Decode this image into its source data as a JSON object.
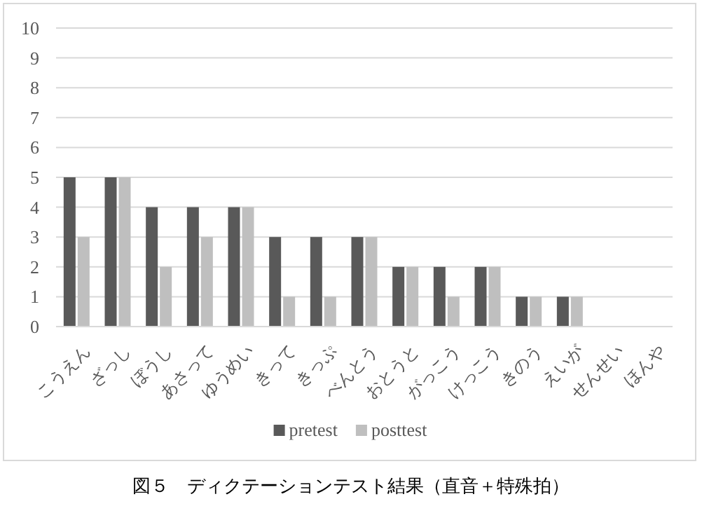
{
  "chart_data": {
    "type": "bar",
    "annotations": [
      "図５　ディクテーションテスト結果（直音＋特殊拍）"
    ],
    "categories": [
      "こうえん",
      "ざっし",
      "ぼうし",
      "あさって",
      "ゆうめい",
      "きって",
      "きっぷ",
      "べんとう",
      "おとうと",
      "がっこう",
      "けっこう",
      "きのう",
      "えいが",
      "せんせい",
      "ほんや"
    ],
    "series": [
      {
        "name": "pretest",
        "color": "#595959",
        "values": [
          5,
          5,
          4,
          4,
          4,
          3,
          3,
          3,
          2,
          2,
          2,
          1,
          1,
          0,
          0
        ]
      },
      {
        "name": "posttest",
        "color": "#bfbfbf",
        "values": [
          3,
          5,
          2,
          3,
          4,
          1,
          1,
          3,
          2,
          1,
          2,
          1,
          1,
          0,
          0
        ]
      }
    ],
    "ylim": [
      0,
      10
    ],
    "yticks": [
      0,
      1,
      2,
      3,
      4,
      5,
      6,
      7,
      8,
      9,
      10
    ],
    "grid": "y",
    "legend": "bottom"
  }
}
